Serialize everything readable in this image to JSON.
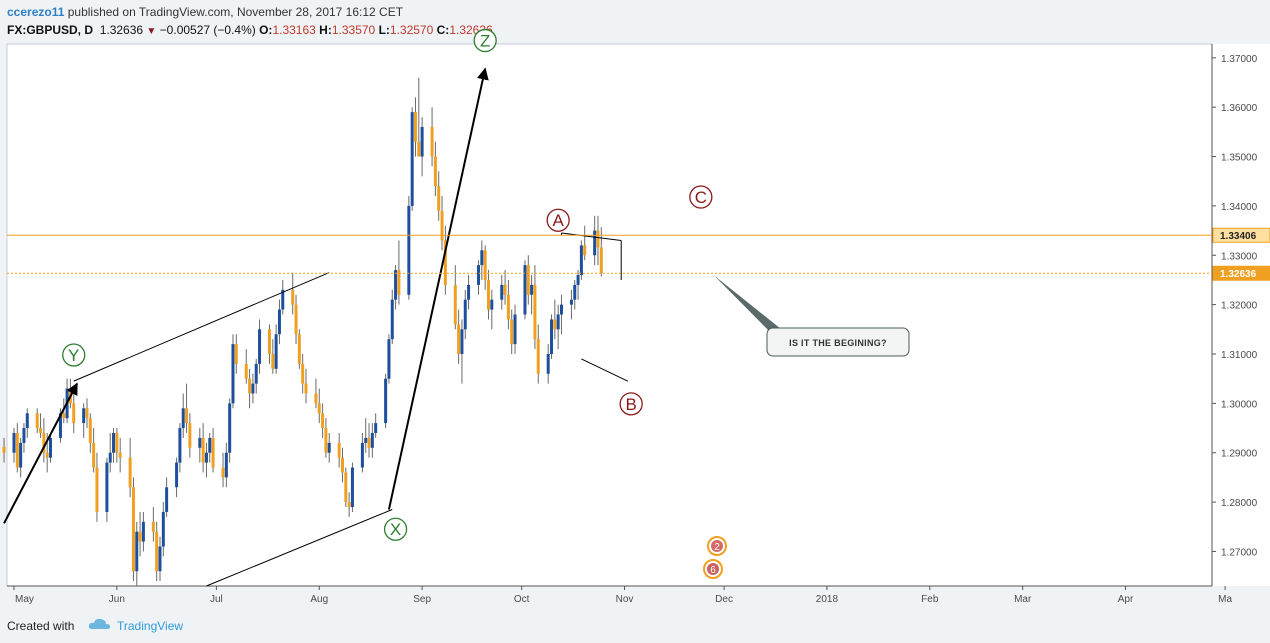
{
  "header": {
    "publisher": "ccerezo11",
    "published_text": " published on TradingView.com, November 28, 2017 16:12 CET",
    "symbol": "FX:GBPUSD, D",
    "last": "1.32636",
    "change": "−0.00527 (−0.4%)",
    "o_label": "O:",
    "o_value": "1.33163",
    "h_label": "H:",
    "h_value": "1.33570",
    "l_label": "L:",
    "l_value": "1.32570",
    "c_label": "C:",
    "c_value": "1.32636"
  },
  "footer": {
    "created": "Created with",
    "brand": "TradingView"
  },
  "colors": {
    "up": "#1e4f9c",
    "down": "#f0a020",
    "wave_green": "#2e7d32",
    "wave_red": "#8b1a1a",
    "price_line": "#f0a020"
  },
  "chart_data": {
    "type": "candlestick",
    "symbol": "FX:GBPUSD",
    "interval": "D",
    "y_ticks": [
      "1.37000",
      "1.36000",
      "1.35000",
      "1.34000",
      "1.33000",
      "1.32000",
      "1.31000",
      "1.30000",
      "1.29000",
      "1.28000",
      "1.27000"
    ],
    "y_range": [
      1.263,
      1.3728
    ],
    "x_ticks": [
      "May",
      "Jun",
      "Jul",
      "Aug",
      "Sep",
      "Oct",
      "Nov",
      "Dec",
      "2018",
      "Feb",
      "Mar",
      "Apr",
      "Ma"
    ],
    "x_tick_dates": [
      "2017-05-01",
      "2017-06-01",
      "2017-07-01",
      "2017-08-01",
      "2017-09-01",
      "2017-10-01",
      "2017-11-01",
      "2017-12-01",
      "2018-01-01",
      "2018-02-01",
      "2018-03-01",
      "2018-04-01",
      "2018-05-01"
    ],
    "price_labels": [
      {
        "value": 1.33406,
        "text": "1.33406",
        "style": "line"
      },
      {
        "value": 1.32636,
        "text": "1.32636",
        "style": "dotted"
      }
    ],
    "wave_labels": [
      {
        "text": "Y",
        "date": "2017-05-19",
        "price": 1.3098,
        "color": "green"
      },
      {
        "text": "X",
        "date": "2017-08-24",
        "price": 1.2745,
        "color": "green"
      },
      {
        "text": "Z",
        "date": "2017-09-20",
        "price": 1.3735,
        "color": "green"
      },
      {
        "text": "A",
        "date": "2017-10-12",
        "price": 1.3371,
        "color": "red"
      },
      {
        "text": "B",
        "date": "2017-11-03",
        "price": 1.2999,
        "color": "red"
      },
      {
        "text": "C",
        "date": "2017-11-24",
        "price": 1.3418,
        "color": "red"
      }
    ],
    "annotation": {
      "text": "IS IT THE BEGINING?",
      "date": "2017-11-28",
      "price": 1.3259
    },
    "events_badges": [
      "2",
      "6"
    ],
    "candles_start": "2017-04-28",
    "candles": [
      [
        1.2912,
        1.293,
        1.288,
        1.29
      ],
      [
        1.29,
        1.295,
        1.288,
        1.294
      ],
      [
        1.294,
        1.296,
        1.286,
        1.287
      ],
      [
        1.287,
        1.293,
        1.285,
        1.292
      ],
      [
        1.292,
        1.296,
        1.29,
        1.295
      ],
      [
        1.295,
        1.299,
        1.293,
        1.298
      ],
      [
        1.298,
        1.299,
        1.294,
        1.295
      ],
      [
        1.295,
        1.298,
        1.293,
        1.294
      ],
      [
        1.294,
        1.297,
        1.288,
        1.29
      ],
      [
        1.29,
        1.294,
        1.286,
        1.289
      ],
      [
        1.289,
        1.294,
        1.288,
        1.293
      ],
      [
        1.293,
        1.299,
        1.292,
        1.298
      ],
      [
        1.298,
        1.301,
        1.296,
        1.297
      ],
      [
        1.297,
        1.305,
        1.296,
        1.303
      ],
      [
        1.303,
        1.305,
        1.299,
        1.3
      ],
      [
        1.3,
        1.303,
        1.294,
        1.296
      ],
      [
        1.296,
        1.3,
        1.293,
        1.299
      ],
      [
        1.299,
        1.301,
        1.295,
        1.297
      ],
      [
        1.297,
        1.298,
        1.29,
        1.292
      ],
      [
        1.292,
        1.295,
        1.286,
        1.287
      ],
      [
        1.287,
        1.29,
        1.276,
        1.278
      ],
      [
        1.278,
        1.289,
        1.276,
        1.288
      ],
      [
        1.288,
        1.294,
        1.286,
        1.29
      ],
      [
        1.29,
        1.295,
        1.288,
        1.294
      ],
      [
        1.294,
        1.295,
        1.288,
        1.29
      ],
      [
        1.29,
        1.293,
        1.286,
        1.289
      ],
      [
        1.289,
        1.293,
        1.281,
        1.283
      ],
      [
        1.283,
        1.285,
        1.264,
        1.266
      ],
      [
        1.266,
        1.276,
        1.263,
        1.274
      ],
      [
        1.274,
        1.278,
        1.269,
        1.272
      ],
      [
        1.272,
        1.278,
        1.27,
        1.276
      ],
      [
        1.276,
        1.279,
        1.272,
        1.274
      ],
      [
        1.274,
        1.276,
        1.264,
        1.266
      ],
      [
        1.266,
        1.273,
        1.264,
        1.271
      ],
      [
        1.271,
        1.28,
        1.269,
        1.278
      ],
      [
        1.278,
        1.285,
        1.277,
        1.283
      ],
      [
        1.283,
        1.289,
        1.281,
        1.288
      ],
      [
        1.288,
        1.296,
        1.286,
        1.295
      ],
      [
        1.295,
        1.302,
        1.293,
        1.299
      ],
      [
        1.299,
        1.304,
        1.294,
        1.296
      ],
      [
        1.296,
        1.298,
        1.289,
        1.291
      ],
      [
        1.291,
        1.295,
        1.288,
        1.293
      ],
      [
        1.293,
        1.296,
        1.286,
        1.288
      ],
      [
        1.288,
        1.292,
        1.285,
        1.29
      ],
      [
        1.29,
        1.294,
        1.288,
        1.293
      ],
      [
        1.293,
        1.295,
        1.286,
        1.287
      ],
      [
        1.287,
        1.29,
        1.283,
        1.285
      ],
      [
        1.285,
        1.292,
        1.283,
        1.29
      ],
      [
        1.29,
        1.301,
        1.288,
        1.3
      ],
      [
        1.3,
        1.314,
        1.299,
        1.312
      ],
      [
        1.312,
        1.314,
        1.306,
        1.308
      ],
      [
        1.308,
        1.311,
        1.304,
        1.305
      ],
      [
        1.305,
        1.307,
        1.299,
        1.302
      ],
      [
        1.302,
        1.306,
        1.3,
        1.304
      ],
      [
        1.304,
        1.309,
        1.302,
        1.308
      ],
      [
        1.308,
        1.317,
        1.306,
        1.315
      ],
      [
        1.315,
        1.316,
        1.308,
        1.31
      ],
      [
        1.31,
        1.313,
        1.306,
        1.307
      ],
      [
        1.307,
        1.316,
        1.306,
        1.314
      ],
      [
        1.314,
        1.321,
        1.312,
        1.319
      ],
      [
        1.319,
        1.325,
        1.318,
        1.323
      ],
      [
        1.323,
        1.3265,
        1.318,
        1.32
      ],
      [
        1.32,
        1.322,
        1.312,
        1.314
      ],
      [
        1.314,
        1.315,
        1.307,
        1.308
      ],
      [
        1.308,
        1.31,
        1.302,
        1.304
      ],
      [
        1.304,
        1.307,
        1.3,
        1.302
      ],
      [
        1.302,
        1.305,
        1.299,
        1.3
      ],
      [
        1.3,
        1.303,
        1.296,
        1.298
      ],
      [
        1.298,
        1.3,
        1.293,
        1.295
      ],
      [
        1.295,
        1.297,
        1.289,
        1.29
      ],
      [
        1.29,
        1.294,
        1.288,
        1.292
      ],
      [
        1.292,
        1.294,
        1.287,
        1.289
      ],
      [
        1.289,
        1.291,
        1.284,
        1.286
      ],
      [
        1.286,
        1.287,
        1.279,
        1.28
      ],
      [
        1.28,
        1.282,
        1.277,
        1.279
      ],
      [
        1.279,
        1.288,
        1.278,
        1.287
      ],
      [
        1.287,
        1.294,
        1.286,
        1.292
      ],
      [
        1.292,
        1.297,
        1.29,
        1.293
      ],
      [
        1.293,
        1.296,
        1.289,
        1.291
      ],
      [
        1.291,
        1.296,
        1.289,
        1.294
      ],
      [
        1.294,
        1.298,
        1.293,
        1.296
      ],
      [
        1.296,
        1.306,
        1.295,
        1.305
      ],
      [
        1.305,
        1.314,
        1.304,
        1.313
      ],
      [
        1.313,
        1.323,
        1.312,
        1.321
      ],
      [
        1.321,
        1.328,
        1.319,
        1.327
      ],
      [
        1.327,
        1.333,
        1.32,
        1.322
      ],
      [
        1.322,
        1.342,
        1.321,
        1.34
      ],
      [
        1.34,
        1.36,
        1.339,
        1.359
      ],
      [
        1.359,
        1.362,
        1.35,
        1.353
      ],
      [
        1.353,
        1.366,
        1.351,
        1.35
      ],
      [
        1.35,
        1.358,
        1.346,
        1.356
      ],
      [
        1.356,
        1.36,
        1.348,
        1.35
      ],
      [
        1.35,
        1.353,
        1.342,
        1.344
      ],
      [
        1.344,
        1.347,
        1.337,
        1.339
      ],
      [
        1.339,
        1.342,
        1.331,
        1.333
      ],
      [
        1.333,
        1.336,
        1.322,
        1.324
      ],
      [
        1.324,
        1.328,
        1.315,
        1.316
      ],
      [
        1.316,
        1.319,
        1.308,
        1.31
      ],
      [
        1.31,
        1.317,
        1.304,
        1.315
      ],
      [
        1.315,
        1.323,
        1.313,
        1.321
      ],
      [
        1.321,
        1.326,
        1.319,
        1.324
      ],
      [
        1.324,
        1.329,
        1.322,
        1.328
      ],
      [
        1.328,
        1.333,
        1.325,
        1.331
      ],
      [
        1.331,
        1.332,
        1.323,
        1.325
      ],
      [
        1.325,
        1.327,
        1.317,
        1.319
      ],
      [
        1.319,
        1.323,
        1.315,
        1.321
      ],
      [
        1.321,
        1.326,
        1.319,
        1.324
      ],
      [
        1.324,
        1.327,
        1.32,
        1.322
      ],
      [
        1.322,
        1.325,
        1.315,
        1.317
      ],
      [
        1.317,
        1.319,
        1.31,
        1.312
      ],
      [
        1.312,
        1.32,
        1.31,
        1.318
      ],
      [
        1.318,
        1.329,
        1.317,
        1.328
      ],
      [
        1.328,
        1.33,
        1.32,
        1.322
      ],
      [
        1.322,
        1.326,
        1.318,
        1.324
      ],
      [
        1.324,
        1.328,
        1.311,
        1.313
      ],
      [
        1.313,
        1.316,
        1.304,
        1.306
      ],
      [
        1.306,
        1.312,
        1.304,
        1.31
      ],
      [
        1.31,
        1.318,
        1.309,
        1.317
      ],
      [
        1.317,
        1.321,
        1.313,
        1.315
      ],
      [
        1.315,
        1.32,
        1.311,
        1.318
      ],
      [
        1.318,
        1.322,
        1.314,
        1.32
      ],
      [
        1.32,
        1.323,
        1.317,
        1.321
      ],
      [
        1.321,
        1.325,
        1.319,
        1.324
      ],
      [
        1.324,
        1.327,
        1.321,
        1.326
      ],
      [
        1.326,
        1.333,
        1.325,
        1.332
      ],
      [
        1.332,
        1.336,
        1.329,
        1.33
      ],
      [
        1.33,
        1.338,
        1.328,
        1.335
      ],
      [
        1.335,
        1.338,
        1.328,
        1.3316
      ],
      [
        1.3316,
        1.3357,
        1.3257,
        1.3264
      ]
    ]
  }
}
